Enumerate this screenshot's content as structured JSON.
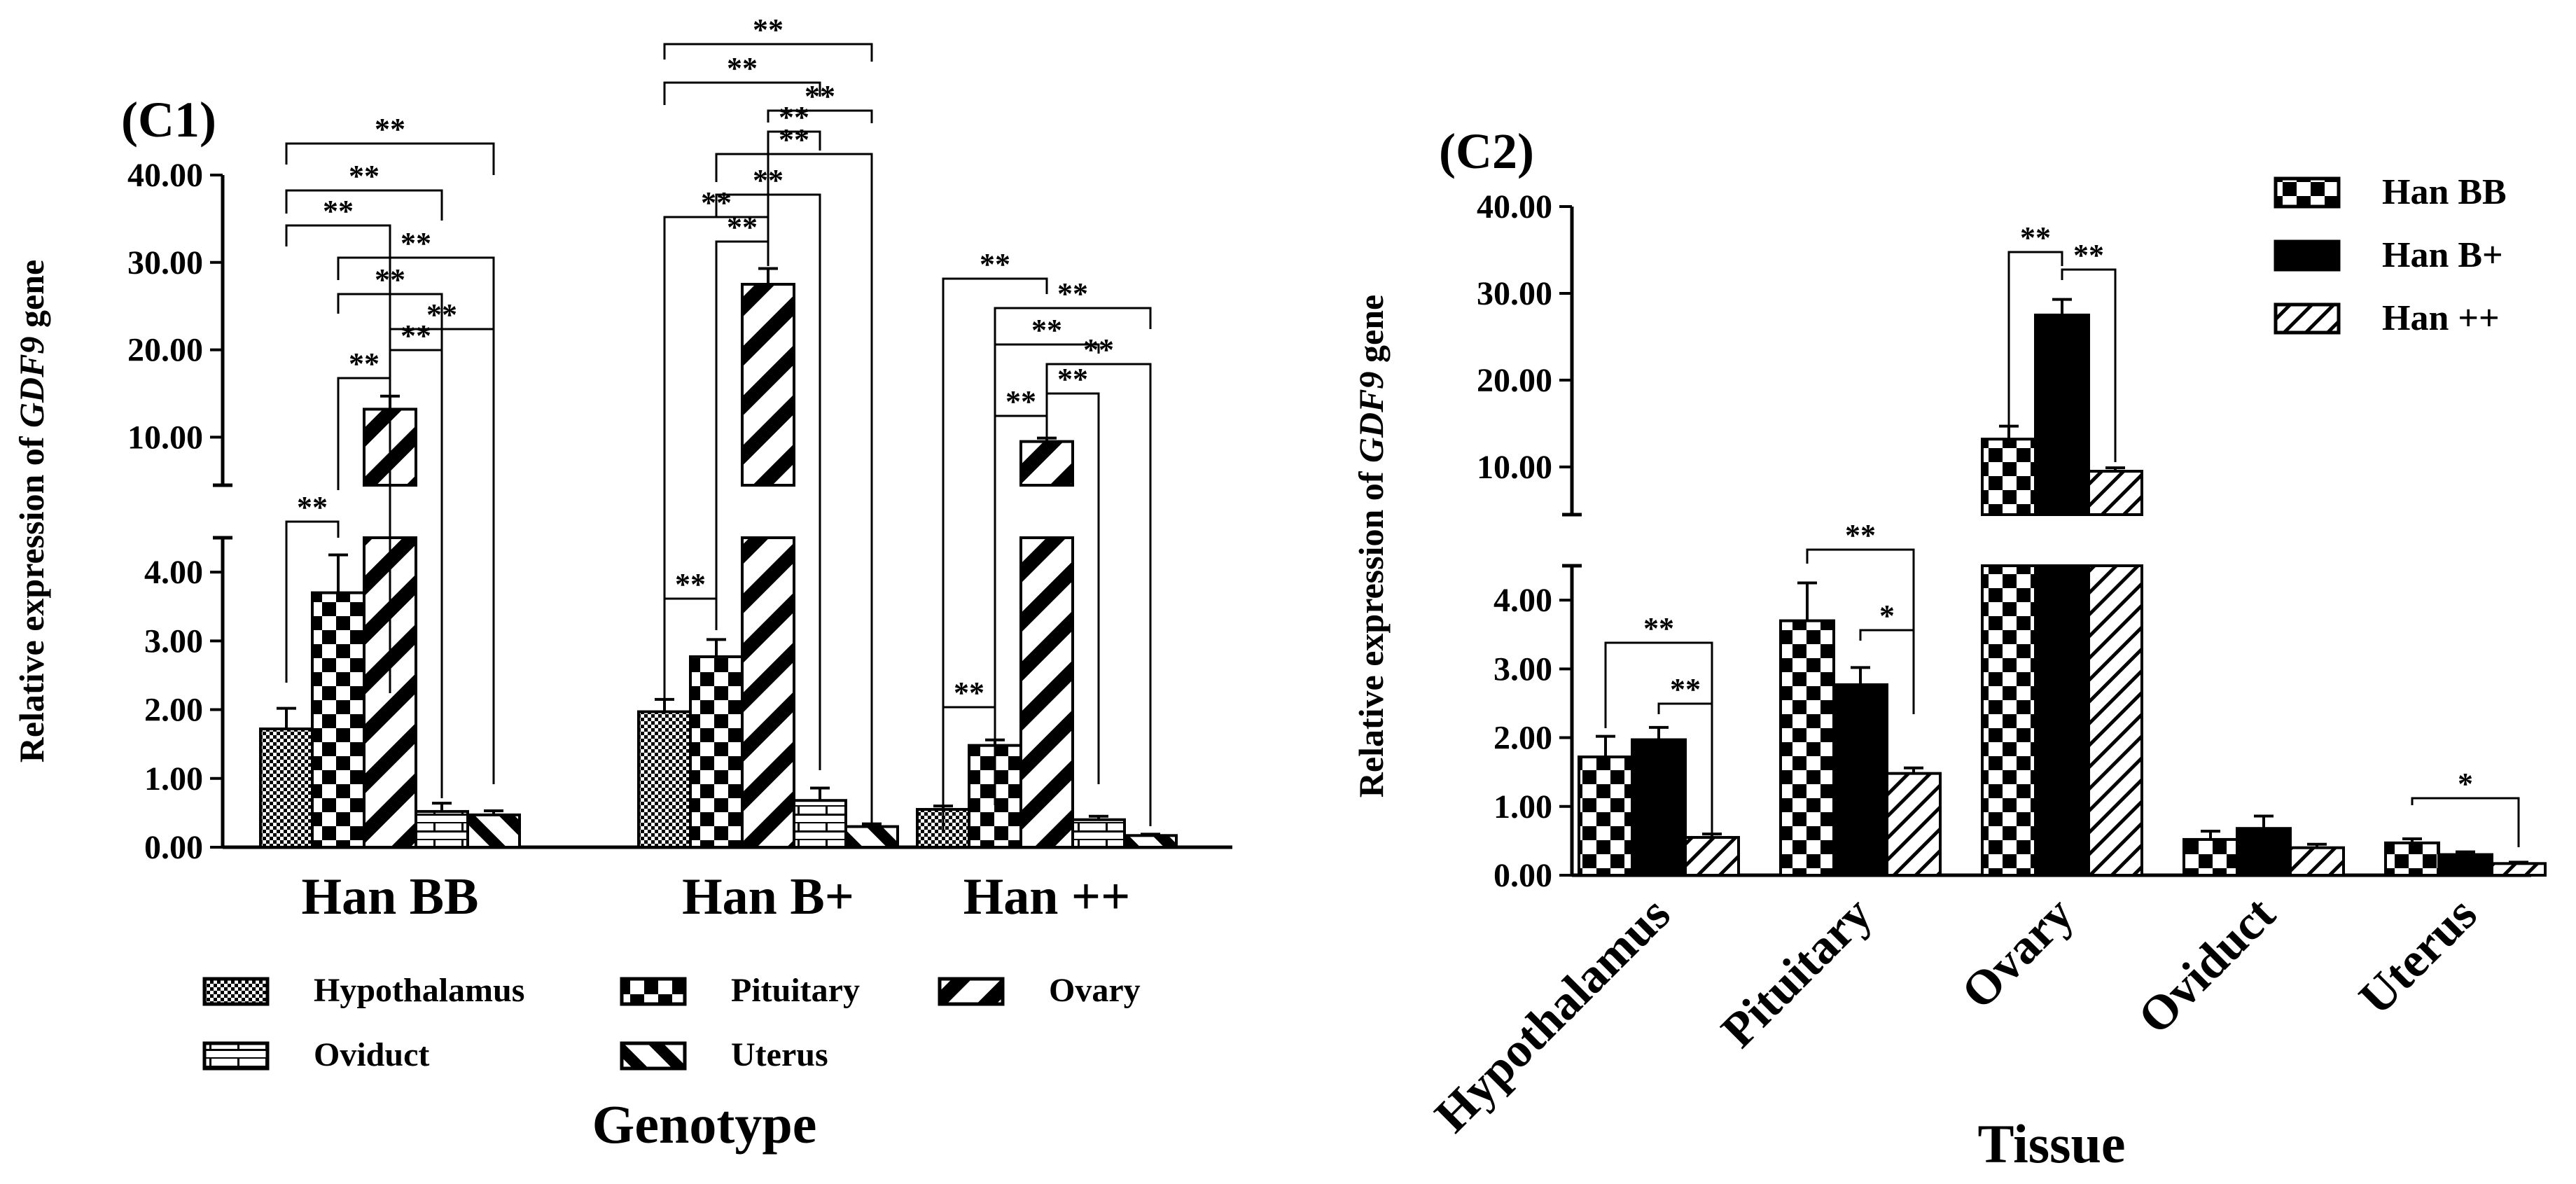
{
  "chart_data": [
    {
      "type": "bar",
      "panel_label": "(C1)",
      "ylabel_prefix": "Relative expression of ",
      "ylabel_gene": "GDF9",
      "ylabel_suffix": " gene",
      "xlabel": "Genotype",
      "categories": [
        "Han BB",
        "Han B+",
        "Han ++"
      ],
      "series": [
        {
          "name": "Hypothalamus",
          "values": [
            1.72,
            1.97,
            0.55
          ],
          "errors": [
            0.3,
            0.18,
            0.05
          ]
        },
        {
          "name": "Pituitary",
          "values": [
            3.7,
            2.77,
            1.48
          ],
          "errors": [
            0.55,
            0.25,
            0.08
          ]
        },
        {
          "name": "Ovary",
          "values": [
            13.2,
            27.5,
            9.5
          ],
          "errors": [
            1.5,
            1.8,
            0.4
          ]
        },
        {
          "name": "Oviduct",
          "values": [
            0.52,
            0.68,
            0.4
          ],
          "errors": [
            0.12,
            0.18,
            0.05
          ]
        },
        {
          "name": "Uterus",
          "values": [
            0.47,
            0.3,
            0.17
          ],
          "errors": [
            0.06,
            0.04,
            0.02
          ]
        }
      ],
      "y_axis": {
        "lower_range": [
          0,
          4.5
        ],
        "upper_range": [
          4.5,
          40
        ],
        "lower_ticks": [
          "0.00",
          "1.00",
          "2.00",
          "3.00",
          "4.00"
        ],
        "upper_ticks": [
          "10.00",
          "20.00",
          "30.00",
          "40.00"
        ]
      },
      "significance_mark": "**",
      "legend_position": "bottom"
    },
    {
      "type": "bar",
      "panel_label": "(C2)",
      "ylabel_prefix": "Relative expression of ",
      "ylabel_gene": "GDF9",
      "ylabel_suffix": " gene",
      "xlabel": "Tissue",
      "categories": [
        "Hypothalamus",
        "Pituitary",
        "Ovary",
        "Oviduct",
        "Uterus"
      ],
      "series": [
        {
          "name": "Han BB",
          "values": [
            1.72,
            3.7,
            13.2,
            0.52,
            0.47
          ],
          "errors": [
            0.3,
            0.55,
            1.5,
            0.12,
            0.06
          ]
        },
        {
          "name": "Han B+",
          "values": [
            1.97,
            2.77,
            27.5,
            0.68,
            0.3
          ],
          "errors": [
            0.18,
            0.25,
            1.8,
            0.18,
            0.04
          ]
        },
        {
          "name": "Han ++",
          "values": [
            0.55,
            1.48,
            9.5,
            0.4,
            0.17
          ],
          "errors": [
            0.05,
            0.08,
            0.4,
            0.05,
            0.02
          ]
        }
      ],
      "y_axis": {
        "lower_range": [
          0,
          4.5
        ],
        "upper_range": [
          4.5,
          40
        ],
        "lower_ticks": [
          "0.00",
          "1.00",
          "2.00",
          "3.00",
          "4.00"
        ],
        "upper_ticks": [
          "10.00",
          "20.00",
          "30.00",
          "40.00"
        ]
      },
      "significance": [
        {
          "category": "Hypothalamus",
          "from": "Han BB",
          "to": "Han ++",
          "mark": "**"
        },
        {
          "category": "Hypothalamus",
          "from": "Han B+",
          "to": "Han ++",
          "mark": "**"
        },
        {
          "category": "Pituitary",
          "from": "Han BB",
          "to": "Han ++",
          "mark": "**"
        },
        {
          "category": "Pituitary",
          "from": "Han B+",
          "to": "Han ++",
          "mark": "*"
        },
        {
          "category": "Ovary",
          "from": "Han BB",
          "to": "Han B+",
          "mark": "**"
        },
        {
          "category": "Ovary",
          "from": "Han B+",
          "to": "Han ++",
          "mark": "**"
        },
        {
          "category": "Uterus",
          "from": "Han BB",
          "to": "Han ++",
          "mark": "*"
        }
      ],
      "legend_position": "top-right"
    }
  ]
}
